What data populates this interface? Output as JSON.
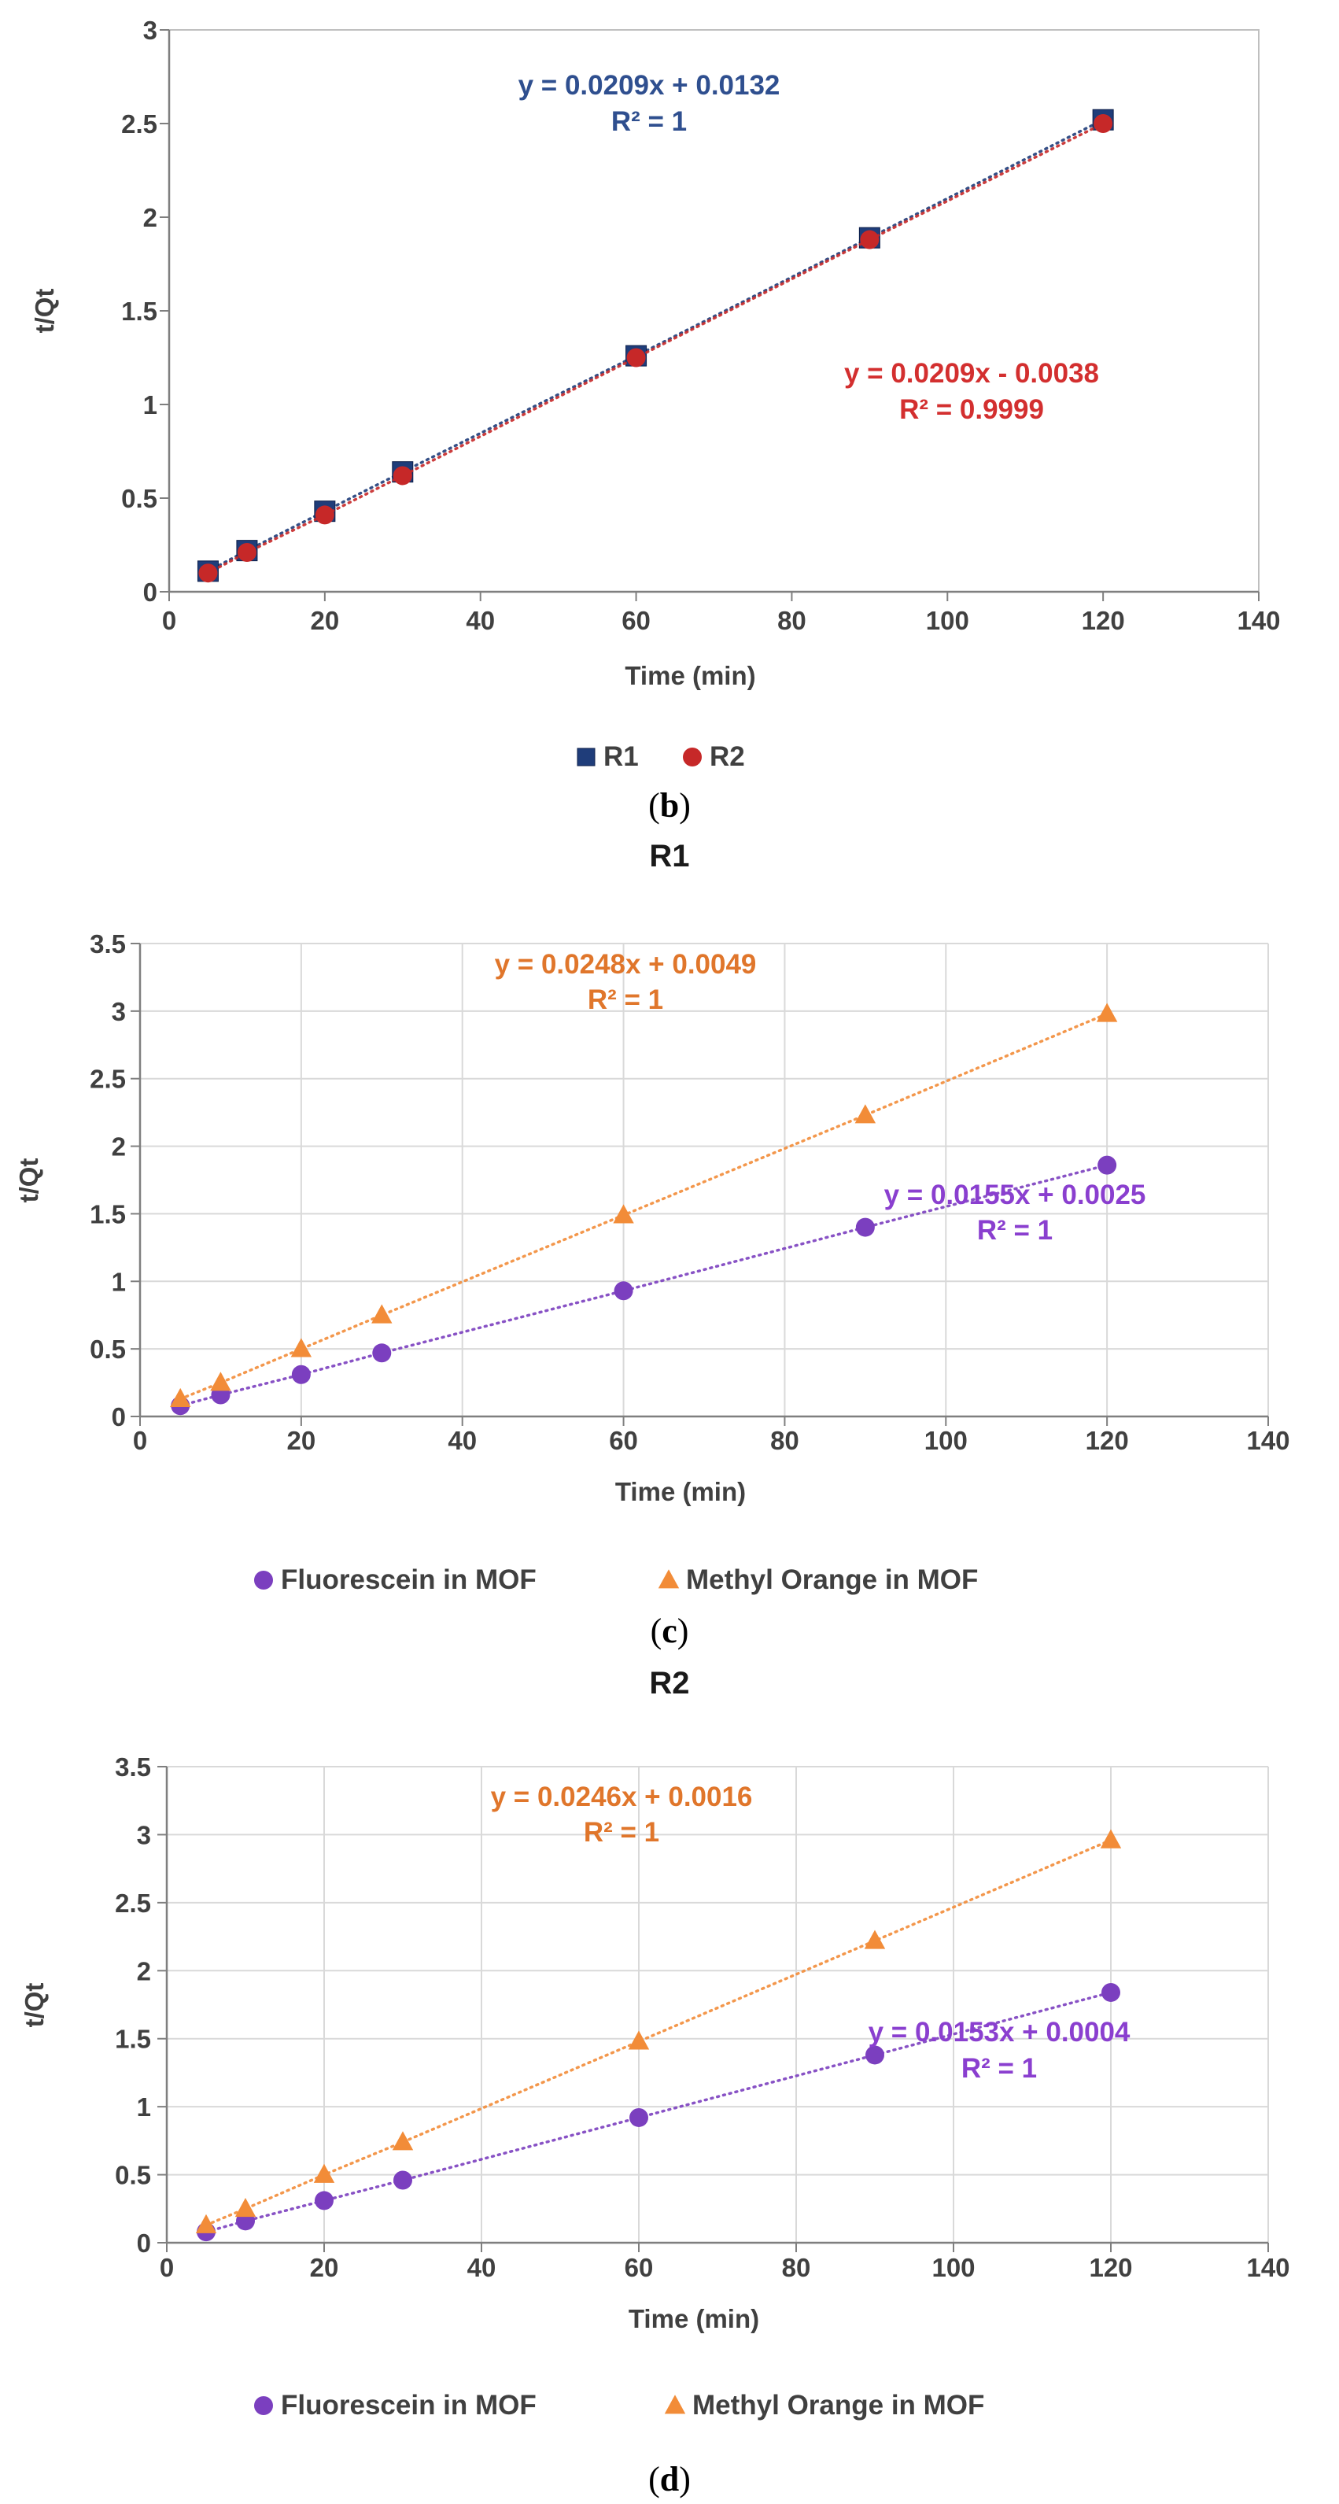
{
  "chart_data": [
    {
      "type": "scatter",
      "panel": "b",
      "title": "",
      "xlabel": "Time (min)",
      "ylabel": "t/Qt",
      "xlim": [
        0,
        140
      ],
      "ylim": [
        0,
        3
      ],
      "xticks": [
        0,
        20,
        40,
        60,
        80,
        100,
        120,
        140
      ],
      "yticks": [
        0,
        0.5,
        1,
        1.5,
        2,
        2.5,
        3
      ],
      "grid": false,
      "legend_position": "bottom",
      "series": [
        {
          "name": "R1",
          "marker": "square",
          "color": "#1f3d7a",
          "x": [
            5,
            10,
            20,
            30,
            60,
            90,
            120
          ],
          "y": [
            0.11,
            0.22,
            0.43,
            0.64,
            1.26,
            1.89,
            2.52
          ]
        },
        {
          "name": "R2",
          "marker": "circle",
          "color": "#c62828",
          "x": [
            5,
            10,
            20,
            30,
            60,
            90,
            120
          ],
          "y": [
            0.1,
            0.21,
            0.41,
            0.62,
            1.25,
            1.88,
            2.5
          ]
        }
      ],
      "annotations": [
        {
          "text": "y = 0.0209x + 0.0132",
          "color": "#2f4f8f"
        },
        {
          "text": "R² = 1",
          "color": "#2f4f8f"
        },
        {
          "text": "y = 0.0209x - 0.0038",
          "color": "#d32f2f"
        },
        {
          "text": "R² = 0.9999",
          "color": "#d32f2f"
        }
      ]
    },
    {
      "type": "scatter",
      "panel": "c",
      "title": "R1",
      "xlabel": "Time (min)",
      "ylabel": "t/Qt",
      "xlim": [
        0,
        140
      ],
      "ylim": [
        0,
        3.5
      ],
      "xticks": [
        0,
        20,
        40,
        60,
        80,
        100,
        120,
        140
      ],
      "yticks": [
        0,
        0.5,
        1,
        1.5,
        2,
        2.5,
        3,
        3.5
      ],
      "grid": true,
      "legend_position": "bottom",
      "series": [
        {
          "name": "Fluorescein in MOF",
          "marker": "circle",
          "color": "#7b3fbf",
          "x": [
            5,
            10,
            20,
            30,
            60,
            90,
            120
          ],
          "y": [
            0.08,
            0.16,
            0.31,
            0.47,
            0.93,
            1.4,
            1.86
          ]
        },
        {
          "name": "Methyl Orange in MOF",
          "marker": "triangle",
          "color": "#f28c38",
          "x": [
            5,
            10,
            20,
            30,
            60,
            90,
            120
          ],
          "y": [
            0.13,
            0.25,
            0.5,
            0.75,
            1.49,
            2.23,
            2.98
          ]
        }
      ],
      "annotations": [
        {
          "text": "y = 0.0248x + 0.0049",
          "color": "#e0762b"
        },
        {
          "text": "R² = 1",
          "color": "#e0762b"
        },
        {
          "text": "y = 0.0155x + 0.0025",
          "color": "#8a3fcf"
        },
        {
          "text": "R² = 1",
          "color": "#8a3fcf"
        }
      ]
    },
    {
      "type": "scatter",
      "panel": "d",
      "title": "R2",
      "xlabel": "Time (min)",
      "ylabel": "t/Qt",
      "xlim": [
        0,
        140
      ],
      "ylim": [
        0,
        3.5
      ],
      "xticks": [
        0,
        20,
        40,
        60,
        80,
        100,
        120,
        140
      ],
      "yticks": [
        0,
        0.5,
        1,
        1.5,
        2,
        2.5,
        3,
        3.5
      ],
      "grid": true,
      "legend_position": "bottom",
      "series": [
        {
          "name": "Fluorescein in MOF",
          "marker": "circle",
          "color": "#7b3fbf",
          "x": [
            5,
            10,
            20,
            30,
            60,
            90,
            120
          ],
          "y": [
            0.08,
            0.16,
            0.31,
            0.46,
            0.92,
            1.38,
            1.84
          ]
        },
        {
          "name": "Methyl Orange in MOF",
          "marker": "triangle",
          "color": "#f28c38",
          "x": [
            5,
            10,
            20,
            30,
            60,
            90,
            120
          ],
          "y": [
            0.13,
            0.25,
            0.5,
            0.74,
            1.48,
            2.22,
            2.96
          ]
        }
      ],
      "annotations": [
        {
          "text": "y = 0.0246x + 0.0016",
          "color": "#e0762b"
        },
        {
          "text": "R² = 1",
          "color": "#e0762b"
        },
        {
          "text": "y = 0.0153x + 0.0004",
          "color": "#8a3fcf"
        },
        {
          "text": "R² = 1",
          "color": "#8a3fcf"
        }
      ]
    }
  ],
  "panels": {
    "b": {
      "open": "(",
      "letter": "b",
      "close": ")"
    },
    "c": {
      "open": "(",
      "letter": "c",
      "close": ")"
    },
    "d": {
      "open": "(",
      "letter": "d",
      "close": ")"
    }
  }
}
